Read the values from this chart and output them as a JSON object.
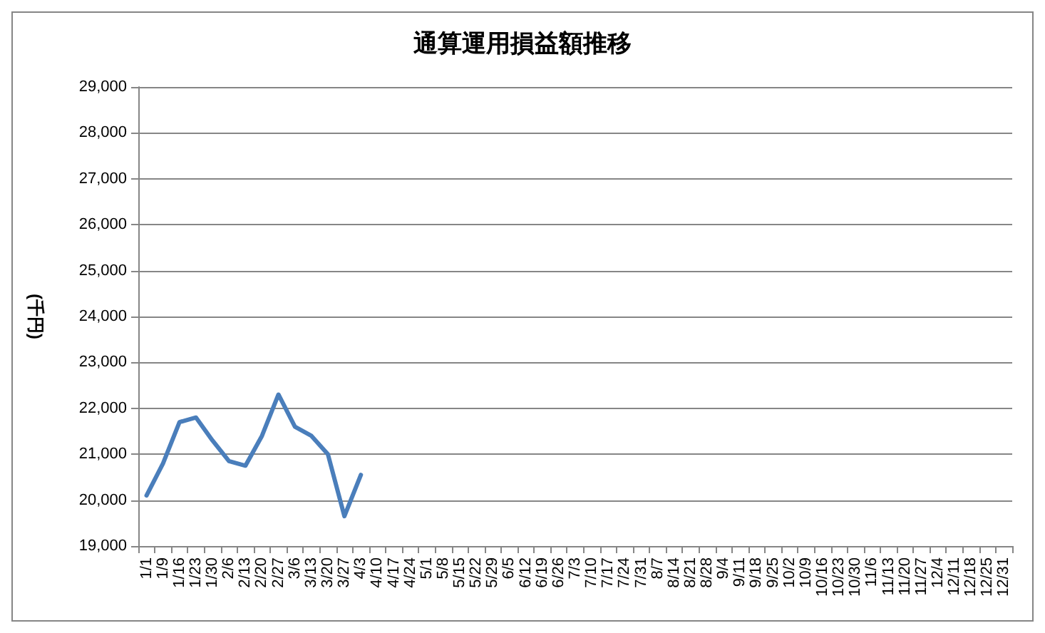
{
  "chart_data": {
    "type": "line",
    "title": "通算運用損益額推移",
    "ylabel": "(千円)",
    "categories": [
      "1/1",
      "1/9",
      "1/16",
      "1/23",
      "1/30",
      "2/6",
      "2/13",
      "2/20",
      "2/27",
      "3/6",
      "3/13",
      "3/20",
      "3/27",
      "4/3",
      "4/10",
      "4/17",
      "4/24",
      "5/1",
      "5/8",
      "5/15",
      "5/22",
      "5/29",
      "6/5",
      "6/12",
      "6/19",
      "6/26",
      "7/3",
      "7/10",
      "7/17",
      "7/24",
      "7/31",
      "8/7",
      "8/14",
      "8/21",
      "8/28",
      "9/4",
      "9/11",
      "9/18",
      "9/25",
      "10/2",
      "10/9",
      "10/16",
      "10/23",
      "10/30",
      "11/6",
      "11/13",
      "11/20",
      "11/27",
      "12/4",
      "12/11",
      "12/18",
      "12/25",
      "12/31"
    ],
    "series": [
      {
        "color": "#4a7ebb",
        "values": [
          20100,
          20800,
          21700,
          21800,
          21300,
          20850,
          20750,
          21400,
          22300,
          21600,
          21400,
          21000,
          19650,
          20550,
          null,
          null,
          null,
          null,
          null,
          null,
          null,
          null,
          null,
          null,
          null,
          null,
          null,
          null,
          null,
          null,
          null,
          null,
          null,
          null,
          null,
          null,
          null,
          null,
          null,
          null,
          null,
          null,
          null,
          null,
          null,
          null,
          null,
          null,
          null,
          null,
          null,
          null,
          null
        ]
      }
    ],
    "ylim": [
      19000,
      29000
    ],
    "yticks": [
      {
        "value": 19000,
        "label": "19,000"
      },
      {
        "value": 20000,
        "label": "20,000"
      },
      {
        "value": 21000,
        "label": "21,000"
      },
      {
        "value": 22000,
        "label": "22,000"
      },
      {
        "value": 23000,
        "label": "23,000"
      },
      {
        "value": 24000,
        "label": "24,000"
      },
      {
        "value": 25000,
        "label": "25,000"
      },
      {
        "value": 26000,
        "label": "26,000"
      },
      {
        "value": 27000,
        "label": "27,000"
      },
      {
        "value": 28000,
        "label": "28,000"
      },
      {
        "value": 29000,
        "label": "29,000"
      }
    ],
    "grid": "y",
    "marker": "none",
    "line_style": "solid"
  }
}
